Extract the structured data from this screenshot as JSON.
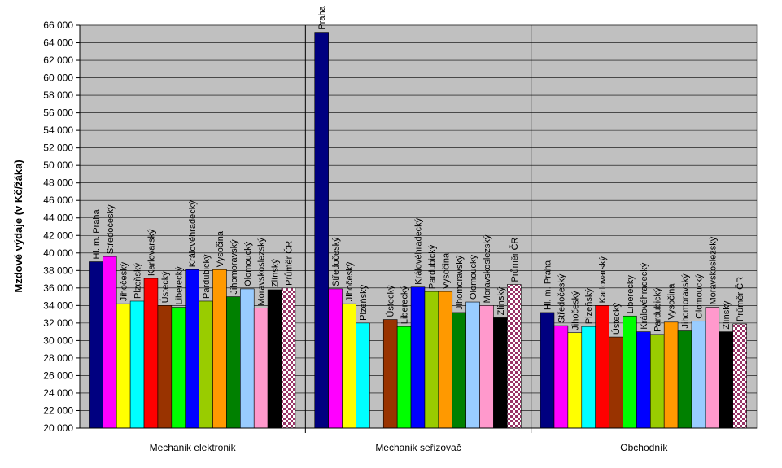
{
  "chart_data": {
    "type": "bar",
    "ylabel": "Mzdové výdaje  (v Kč/žáka)",
    "ylim": [
      20000,
      66000
    ],
    "ytick_step": 2000,
    "grid": true,
    "plot_background": "#c0c0c0",
    "categories": [
      "Mechanik elektronik",
      "Mechanik seřizovač",
      "Obchodník"
    ],
    "series": [
      {
        "name": "Hl. m. Praha",
        "color": "#000080",
        "pattern": null,
        "values": [
          39000,
          65200,
          33200
        ]
      },
      {
        "name": "Středočeský",
        "color": "#ff00ff",
        "pattern": null,
        "values": [
          39600,
          35900,
          31700
        ]
      },
      {
        "name": "Jihočeský",
        "color": "#ffff00",
        "pattern": null,
        "values": [
          34200,
          34200,
          30900
        ]
      },
      {
        "name": "Plzeňský",
        "color": "#00ffff",
        "pattern": null,
        "values": [
          34500,
          32000,
          31600
        ]
      },
      {
        "name": "Karlovarský",
        "color": "#ff0000",
        "pattern": null,
        "values": [
          37100,
          null,
          34000
        ]
      },
      {
        "name": "Ústecký",
        "color": "#993300",
        "pattern": null,
        "values": [
          34000,
          32400,
          30400
        ]
      },
      {
        "name": "Liberecký",
        "color": "#00ff00",
        "pattern": null,
        "values": [
          33800,
          31600,
          32800
        ]
      },
      {
        "name": "Královéhradecký",
        "color": "#0000ff",
        "pattern": null,
        "values": [
          38100,
          36100,
          31000
        ]
      },
      {
        "name": "Pardubický",
        "color": "#99cc00",
        "pattern": null,
        "values": [
          34500,
          35600,
          30700
        ]
      },
      {
        "name": "Vysočina",
        "color": "#ff9900",
        "pattern": null,
        "values": [
          38100,
          35600,
          32100
        ]
      },
      {
        "name": "Jihomoravský",
        "color": "#008000",
        "pattern": null,
        "values": [
          35000,
          33200,
          31100
        ]
      },
      {
        "name": "Olomoucký",
        "color": "#99ccff",
        "pattern": null,
        "values": [
          35900,
          34400,
          32200
        ]
      },
      {
        "name": "Moravskoslezský",
        "color": "#ff99cc",
        "pattern": null,
        "values": [
          33700,
          34000,
          33800
        ]
      },
      {
        "name": "Zlínský",
        "color": "#000000",
        "pattern": null,
        "values": [
          35800,
          32600,
          31000
        ]
      },
      {
        "name": "Průměr ČR",
        "color": "#993366",
        "pattern": "checker",
        "values": [
          36000,
          36400,
          31900
        ]
      }
    ],
    "bar_labels": [
      [
        "Hl. m. Praha",
        "Středočeský",
        "Jihočeský",
        "Plzeňský",
        "Karlovarský",
        "Ústecký",
        "Liberecký",
        "Královéhradecký",
        "Pardubický",
        "Vysočina",
        "Jihomoravský",
        "Olomoucký",
        "Moravskoslezský",
        "Zlínský",
        "Průměr ČR"
      ],
      [
        "Praha",
        "Středočeský",
        "Jihočeský",
        "Plzeňský",
        "",
        "Ústecký",
        "Liberecký",
        "Královéhradecký",
        "Pardubický",
        "Vysočina",
        "Jihomoravský",
        "Olomoucký",
        "Moravskoslezský",
        "Zlínský",
        "Průměr ČR"
      ],
      [
        "Hl. m. Praha",
        "Středočeský",
        "Jihočeský",
        "Plzeňský",
        "Karlovarský",
        "Ústecký",
        "Liberecký",
        "Královéhradecký",
        "Pardubický",
        "Vysočina",
        "Jihomoravský",
        "Olomoucký",
        "Moravskoslezský",
        "Zlínský",
        "Průměr ČR"
      ]
    ]
  }
}
